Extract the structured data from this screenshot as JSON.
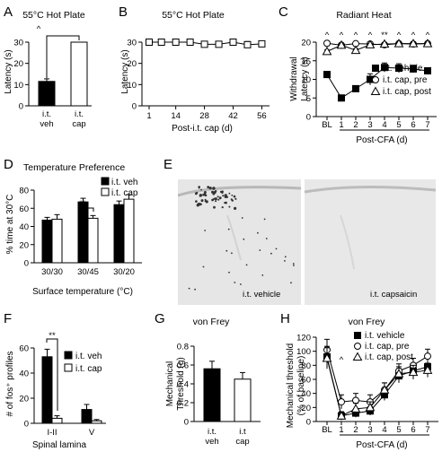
{
  "panels": {
    "A": {
      "label": "A",
      "title": "55°C Hot Plate",
      "ylabel": "Latency (s)",
      "yticks": [
        "0",
        "10",
        "20",
        "30"
      ],
      "sig": "^"
    },
    "B": {
      "label": "B",
      "title": "55°C Hot Plate",
      "ylabel": "Latency (s)",
      "xlabel": "Post-i.t. cap (d)",
      "yticks": [
        "0",
        "10",
        "20",
        "30"
      ],
      "xticks": [
        "1",
        "14",
        "28",
        "42",
        "56"
      ]
    },
    "C": {
      "label": "C",
      "title": "Radiant Heat",
      "ylabel1": "Withdrawal",
      "ylabel2": "Latency (s)",
      "xlabel": "Post-CFA (d)",
      "yticks": [
        "0",
        "5",
        "10",
        "15",
        "20"
      ],
      "xticks": [
        "BL",
        "1",
        "2",
        "3",
        "4",
        "5",
        "6",
        "7"
      ],
      "sig": [
        "^",
        "^",
        "^",
        "^",
        "**",
        "^",
        "^",
        "^"
      ],
      "legend": [
        "i.t. vehicle",
        "i.t. cap, pre",
        "i.t. cap, post"
      ]
    },
    "D": {
      "label": "D",
      "title": "Temperature Preference",
      "ylabel": "% time at 30°C",
      "xlabel": "Surface temperature (°C)",
      "yticks": [
        "0",
        "20",
        "40",
        "60",
        "80"
      ],
      "legend": [
        "i.t. veh",
        "i.t. cap"
      ],
      "sig": "**"
    },
    "E": {
      "label": "E",
      "caption_left": "i.t. vehicle",
      "caption_right": "i.t. capsaicin"
    },
    "F": {
      "label": "F",
      "ylabel": "# of fos⁺ profiles",
      "xlabel": "Spinal lamina",
      "yticks": [
        "0",
        "20",
        "40",
        "60"
      ],
      "legend": [
        "i.t. veh",
        "i.t. cap"
      ],
      "sig": "**"
    },
    "G": {
      "label": "G",
      "title": "von Frey",
      "ylabel1": "Mechanical",
      "ylabel2": "Threshold (g)",
      "yticks": [
        "0",
        "0.2",
        "0.4",
        "0.6",
        "0.8"
      ]
    },
    "H": {
      "label": "H",
      "title": "von Frey",
      "ylabel1": "Mechanical threshold",
      "ylabel2": "(% of baseline)",
      "xlabel": "Post-CFA (d)",
      "yticks": [
        "0",
        "20",
        "40",
        "60",
        "80",
        "100",
        "120"
      ],
      "xticks": [
        "BL",
        "1",
        "2",
        "3",
        "4",
        "5",
        "6",
        "7"
      ],
      "sig": "^",
      "legend": [
        "i.t. vehicle",
        "i.t. cap, pre",
        "i.t. cap, post"
      ]
    }
  },
  "chart_data": [
    {
      "panel": "A",
      "type": "bar",
      "categories": [
        "i.t. veh",
        "i.t. cap"
      ],
      "values": [
        11.5,
        30
      ],
      "errors": [
        1.2,
        0
      ],
      "ylim": [
        0,
        30
      ],
      "colors": [
        "#000000",
        "#ffffff"
      ]
    },
    {
      "panel": "B",
      "type": "line",
      "x": [
        1,
        7,
        14,
        21,
        28,
        35,
        42,
        49,
        56
      ],
      "y": [
        30,
        30,
        30,
        30,
        29,
        29,
        30,
        28.8,
        29.2
      ],
      "errors": [
        0.3,
        0.3,
        0.3,
        0.3,
        0.6,
        0.6,
        0.5,
        1.5,
        1.0
      ],
      "ylim": [
        0,
        30
      ]
    },
    {
      "panel": "C",
      "type": "line",
      "categories": [
        "BL",
        "1",
        "2",
        "3",
        "4",
        "5",
        "6",
        "7"
      ],
      "ylim": [
        0,
        20
      ],
      "series": [
        {
          "name": "i.t. vehicle",
          "marker": "square",
          "values": [
            11.3,
            5,
            7.5,
            10,
            13.2,
            13,
            12.8,
            12.3
          ],
          "errors": [
            0.8,
            0.7,
            0.8,
            1.5,
            1.2,
            1.2,
            1.0,
            0.8
          ]
        },
        {
          "name": "i.t. cap, pre",
          "marker": "circle",
          "values": [
            19.7,
            19.2,
            19.6,
            19.5,
            19.3,
            19.6,
            19.5,
            19.6
          ],
          "errors": [
            0.3,
            0.4,
            0.3,
            0.3,
            0.4,
            0.3,
            0.3,
            0.3
          ]
        },
        {
          "name": "i.t. cap, post",
          "marker": "triangle",
          "values": [
            17.5,
            19.2,
            17.8,
            19.3,
            19.5,
            19.6,
            19.6,
            19.6
          ],
          "errors": [
            0.4,
            0.3,
            0.4,
            0.3,
            0.3,
            0.3,
            0.3,
            0.3
          ]
        }
      ]
    },
    {
      "panel": "D",
      "type": "bar",
      "categories": [
        "30/30",
        "30/45",
        "30/20"
      ],
      "ylim": [
        0,
        80
      ],
      "series": [
        {
          "name": "i.t. veh",
          "values": [
            47,
            67,
            64
          ],
          "errors": [
            3,
            4,
            4
          ]
        },
        {
          "name": "i.t. cap",
          "values": [
            48,
            49,
            70
          ],
          "errors": [
            5,
            3,
            5
          ]
        }
      ]
    },
    {
      "panel": "F",
      "type": "bar",
      "categories": [
        "I-II",
        "V"
      ],
      "ylim": [
        0,
        60
      ],
      "series": [
        {
          "name": "i.t. veh",
          "values": [
            53,
            11
          ],
          "errors": [
            6,
            4
          ]
        },
        {
          "name": "i.t. cap",
          "values": [
            4,
            2
          ],
          "errors": [
            2,
            1
          ]
        }
      ]
    },
    {
      "panel": "G",
      "type": "bar",
      "categories": [
        "i.t. veh",
        "i.t cap"
      ],
      "values": [
        0.56,
        0.45
      ],
      "errors": [
        0.08,
        0.07
      ],
      "ylim": [
        0,
        0.8
      ]
    },
    {
      "panel": "H",
      "type": "line",
      "categories": [
        "BL",
        "1",
        "2",
        "3",
        "4",
        "5",
        "6",
        "7"
      ],
      "ylim": [
        0,
        120
      ],
      "series": [
        {
          "name": "i.t. vehicle",
          "marker": "square",
          "values": [
            92,
            8,
            12,
            15,
            38,
            65,
            72,
            78
          ],
          "errors": [
            15,
            5,
            6,
            6,
            8,
            10,
            10,
            12
          ]
        },
        {
          "name": "i.t. cap, pre",
          "marker": "circle",
          "values": [
            102,
            28,
            30,
            28,
            45,
            72,
            80,
            93
          ],
          "errors": [
            15,
            10,
            10,
            10,
            10,
            10,
            10,
            10
          ]
        },
        {
          "name": "i.t. cap, post",
          "marker": "triangle",
          "values": [
            90,
            8,
            18,
            20,
            45,
            68,
            70,
            73
          ],
          "errors": [
            15,
            6,
            8,
            8,
            10,
            10,
            10,
            10
          ]
        }
      ]
    }
  ],
  "colors": {
    "black": "#000000",
    "white": "#ffffff",
    "tissue": "#e4e4e4"
  }
}
